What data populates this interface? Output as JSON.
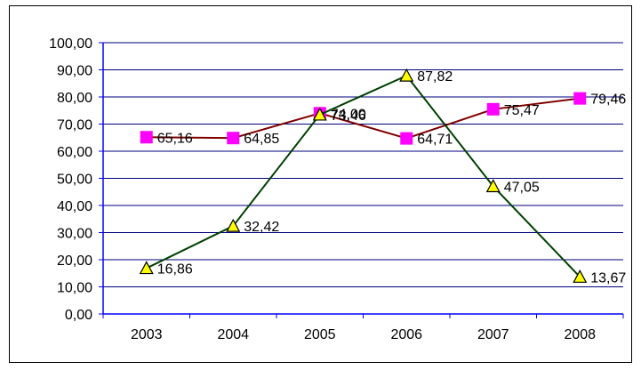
{
  "chart_data": {
    "type": "line",
    "categories": [
      "2003",
      "2004",
      "2005",
      "2006",
      "2007",
      "2008"
    ],
    "series": [
      {
        "values": [
          65.16,
          64.85,
          74.0,
          64.71,
          75.47,
          79.46
        ],
        "labels": [
          "65,16",
          "64,85",
          "74,00",
          "64,71",
          "75,47",
          "79,46"
        ],
        "line_color": "#800000",
        "marker": "square",
        "marker_color": "#ff00ff"
      },
      {
        "values": [
          16.86,
          32.42,
          73.46,
          87.82,
          47.05,
          13.67
        ],
        "labels": [
          "16,86",
          "32,42",
          "73,46",
          "87,82",
          "47,05",
          "13,67"
        ],
        "line_color": "#004000",
        "marker": "triangle",
        "marker_color": "#ffff00"
      }
    ],
    "ylim": [
      0,
      100
    ],
    "y_ticks": [
      "0,00",
      "10,00",
      "20,00",
      "30,00",
      "40,00",
      "50,00",
      "60,00",
      "70,00",
      "80,00",
      "90,00",
      "100,00"
    ],
    "grid": true,
    "grid_color": "#000080",
    "axis_color": "#0000ff",
    "legend": "none"
  }
}
